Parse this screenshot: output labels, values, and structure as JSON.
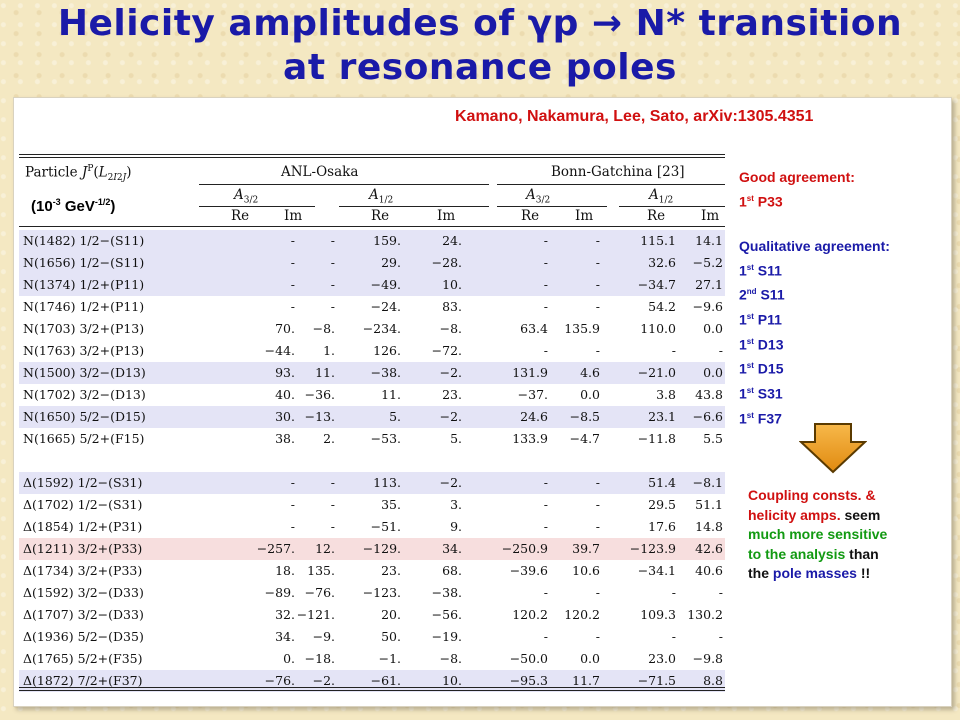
{
  "title": {
    "line1": "Helicity amplitudes of γp → N* transition",
    "line2": "at resonance poles"
  },
  "citation": "Kamano, Nakamura, Lee, Sato, arXiv:1305.4351",
  "units": {
    "base": "(10",
    "exp1": "-3",
    "mid": " GeV",
    "exp2": "-1/2",
    "end": ")"
  },
  "table": {
    "header_col0": "Particle J^P(L_{2I2J})",
    "group1": "ANL-Osaka",
    "group2": "Bonn-Gatchina [23]",
    "sub_a32": "A3/2",
    "sub_a12": "A1/2",
    "re": "Re",
    "im": "Im",
    "rows": [
      {
        "particle": "N(1482) 1/2−(S11)",
        "v": [
          "-",
          "-",
          "159.",
          "24.",
          "-",
          "-",
          "115.1",
          "14.1"
        ],
        "hl": "blue"
      },
      {
        "particle": "N(1656) 1/2−(S11)",
        "v": [
          "-",
          "-",
          "29.",
          "−28.",
          "-",
          "-",
          "32.6",
          "−5.2"
        ],
        "hl": "blue"
      },
      {
        "particle": "N(1374) 1/2+(P11)",
        "v": [
          "-",
          "-",
          "−49.",
          "10.",
          "-",
          "-",
          "−34.7",
          "27.1"
        ],
        "hl": "blue"
      },
      {
        "particle": "N(1746) 1/2+(P11)",
        "v": [
          "-",
          "-",
          "−24.",
          "83.",
          "-",
          "-",
          "54.2",
          "−9.6"
        ],
        "hl": ""
      },
      {
        "particle": "N(1703) 3/2+(P13)",
        "v": [
          "70.",
          "−8.",
          "−234.",
          "−8.",
          "63.4",
          "135.9",
          "110.0",
          "0.0"
        ],
        "hl": ""
      },
      {
        "particle": "N(1763) 3/2+(P13)",
        "v": [
          "−44.",
          "1.",
          "126.",
          "−72.",
          "-",
          "-",
          "-",
          "-"
        ],
        "hl": ""
      },
      {
        "particle": "N(1500) 3/2−(D13)",
        "v": [
          "93.",
          "11.",
          "−38.",
          "−2.",
          "131.9",
          "4.6",
          "−21.0",
          "0.0"
        ],
        "hl": "blue"
      },
      {
        "particle": "N(1702) 3/2−(D13)",
        "v": [
          "40.",
          "−36.",
          "11.",
          "23.",
          "−37.",
          "0.0",
          "3.8",
          "43.8"
        ],
        "hl": ""
      },
      {
        "particle": "N(1650) 5/2−(D15)",
        "v": [
          "30.",
          "−13.",
          "5.",
          "−2.",
          "24.6",
          "−8.5",
          "23.1",
          "−6.6"
        ],
        "hl": "blue"
      },
      {
        "particle": "N(1665) 5/2+(F15)",
        "v": [
          "38.",
          "2.",
          "−53.",
          "5.",
          "133.9",
          "−4.7",
          "−11.8",
          "5.5"
        ],
        "hl": ""
      },
      {
        "particle": "Δ(1592) 1/2−(S31)",
        "v": [
          "-",
          "-",
          "113.",
          "−2.",
          "-",
          "-",
          "51.4",
          "−8.1"
        ],
        "hl": "blue"
      },
      {
        "particle": "Δ(1702) 1/2−(S31)",
        "v": [
          "-",
          "-",
          "35.",
          "3.",
          "-",
          "-",
          "29.5",
          "51.1"
        ],
        "hl": ""
      },
      {
        "particle": "Δ(1854) 1/2+(P31)",
        "v": [
          "-",
          "-",
          "−51.",
          "9.",
          "-",
          "-",
          "17.6",
          "14.8"
        ],
        "hl": ""
      },
      {
        "particle": "Δ(1211) 3/2+(P33)",
        "v": [
          "−257.",
          "12.",
          "−129.",
          "34.",
          "−250.9",
          "39.7",
          "−123.9",
          "42.6"
        ],
        "hl": "red"
      },
      {
        "particle": "Δ(1734) 3/2+(P33)",
        "v": [
          "18.",
          "135.",
          "23.",
          "68.",
          "−39.6",
          "10.6",
          "−34.1",
          "40.6"
        ],
        "hl": ""
      },
      {
        "particle": "Δ(1592) 3/2−(D33)",
        "v": [
          "−89.",
          "−76.",
          "−123.",
          "−38.",
          "-",
          "-",
          "-",
          "-"
        ],
        "hl": ""
      },
      {
        "particle": "Δ(1707) 3/2−(D33)",
        "v": [
          "32.",
          "−121.",
          "20.",
          "−56.",
          "120.2",
          "120.2",
          "109.3",
          "130.2"
        ],
        "hl": ""
      },
      {
        "particle": "Δ(1936) 5/2−(D35)",
        "v": [
          "34.",
          "−9.",
          "50.",
          "−19.",
          "-",
          "-",
          "-",
          "-"
        ],
        "hl": ""
      },
      {
        "particle": "Δ(1765) 5/2+(F35)",
        "v": [
          "0.",
          "−18.",
          "−1.",
          "−8.",
          "−50.0",
          "0.0",
          "23.0",
          "−9.8"
        ],
        "hl": ""
      },
      {
        "particle": "Δ(1872) 7/2+(F37)",
        "v": [
          "−76.",
          "−2.",
          "−61.",
          "10.",
          "−95.3",
          "11.7",
          "−71.5",
          "8.8"
        ],
        "hl": "blue"
      }
    ]
  },
  "notes": {
    "good_heading": "Good agreement:",
    "good_items": [
      {
        "n": "1",
        "sup": "st",
        "name": " P33"
      }
    ],
    "qual_heading": "Qualitative agreement:",
    "qual_items": [
      {
        "n": "1",
        "sup": "st",
        "name": " S11"
      },
      {
        "n": "2",
        "sup": "nd",
        "name": " S11"
      },
      {
        "n": "1",
        "sup": "st",
        "name": " P11"
      },
      {
        "n": "1",
        "sup": "st",
        "name": " D13"
      },
      {
        "n": "1",
        "sup": "st",
        "name": " D15"
      },
      {
        "n": "1",
        "sup": "st",
        "name": " S31"
      },
      {
        "n": "1",
        "sup": "st",
        "name": " F37"
      }
    ]
  },
  "coupling": {
    "line1": "Coupling consts. &",
    "line2a": "helicity amps.",
    "line2b": " seem",
    "line3": "much more sensitive",
    "line4a": "to the analysis",
    "line4b": " than",
    "line5a": "the ",
    "line5b": "pole masses",
    "line5c": " !!"
  },
  "colors": {
    "title": "#1a1aa8",
    "red": "#d01010",
    "green": "#129a12",
    "highlight_blue": "#e4e4f6",
    "highlight_red": "#f7dede",
    "arrow": "#f0a020"
  },
  "icons": {
    "arrow": "down-arrow-icon"
  }
}
